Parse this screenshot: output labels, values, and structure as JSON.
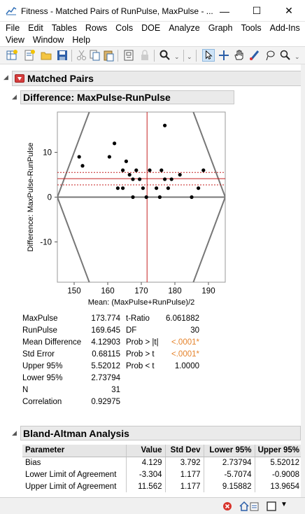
{
  "window": {
    "title": "Fitness - Matched Pairs of RunPulse, MaxPulse - ...",
    "minimize_glyph": "—",
    "maximize_glyph": "☐",
    "close_glyph": "✕"
  },
  "menu": {
    "row1": [
      "File",
      "Edit",
      "Tables",
      "Rows",
      "Cols",
      "DOE",
      "Analyze",
      "Graph",
      "Tools",
      "Add-Ins"
    ],
    "row2": [
      "View",
      "Window",
      "Help"
    ]
  },
  "toolbar": {
    "icons": [
      "new-data-table-icon",
      "new-script-icon",
      "open-icon",
      "save-icon",
      "cut-icon",
      "copy-icon",
      "paste-icon",
      "journal-icon",
      "lock-icon",
      "search-icon",
      "arrow-tool-icon",
      "crosshair-tool-icon",
      "grabber-hand-icon",
      "brush-icon",
      "lasso-icon",
      "magnifier-icon"
    ]
  },
  "report": {
    "matched_pairs_title": "Matched Pairs",
    "difference_title": "Difference: MaxPulse-RunPulse",
    "bland_altman_title": "Bland-Altman Analysis"
  },
  "chart_data": {
    "type": "scatter",
    "title": "",
    "xlabel": "Mean: (MaxPulse+RunPulse)/2",
    "ylabel": "Difference: MaxPulse-RunPulse",
    "xlim": [
      145,
      195
    ],
    "ylim": [
      -19,
      19
    ],
    "xticks": [
      150,
      160,
      170,
      180,
      190
    ],
    "yticks": [
      -10,
      0,
      10
    ],
    "mean_difference": 4.12903,
    "upper_95": 5.52012,
    "lower_95": 2.73794,
    "mean_x_line": 171.71,
    "points": [
      {
        "x": 151.5,
        "y": 9
      },
      {
        "x": 152.5,
        "y": 7
      },
      {
        "x": 160.5,
        "y": 9
      },
      {
        "x": 162,
        "y": 12
      },
      {
        "x": 163,
        "y": 2
      },
      {
        "x": 164.5,
        "y": 2
      },
      {
        "x": 164.5,
        "y": 6
      },
      {
        "x": 165.5,
        "y": 8
      },
      {
        "x": 166.5,
        "y": 5
      },
      {
        "x": 167.5,
        "y": 0
      },
      {
        "x": 167.5,
        "y": 4
      },
      {
        "x": 168.5,
        "y": 6
      },
      {
        "x": 169.5,
        "y": 4
      },
      {
        "x": 170.5,
        "y": 2
      },
      {
        "x": 171.5,
        "y": 0
      },
      {
        "x": 172.5,
        "y": 6
      },
      {
        "x": 174.5,
        "y": 2
      },
      {
        "x": 175.5,
        "y": 0
      },
      {
        "x": 176,
        "y": 6
      },
      {
        "x": 177,
        "y": 16
      },
      {
        "x": 177,
        "y": 4
      },
      {
        "x": 178,
        "y": 2
      },
      {
        "x": 179,
        "y": 4
      },
      {
        "x": 181.5,
        "y": 5
      },
      {
        "x": 185,
        "y": 0
      },
      {
        "x": 187,
        "y": 2
      },
      {
        "x": 188.5,
        "y": 6
      }
    ]
  },
  "stats_left": [
    {
      "label": "MaxPulse",
      "value": "173.774"
    },
    {
      "label": "RunPulse",
      "value": "169.645"
    },
    {
      "label": "Mean Difference",
      "value": "4.12903"
    },
    {
      "label": "Std Error",
      "value": "0.68115"
    },
    {
      "label": "Upper 95%",
      "value": "5.52012"
    },
    {
      "label": "Lower 95%",
      "value": "2.73794"
    },
    {
      "label": "N",
      "value": "31"
    },
    {
      "label": "Correlation",
      "value": "0.92975"
    }
  ],
  "stats_right": [
    {
      "label": "t-Ratio",
      "value": "6.061882",
      "highlight": false
    },
    {
      "label": "DF",
      "value": "30",
      "highlight": false
    },
    {
      "label": "Prob > |t|",
      "value": "<.0001*",
      "highlight": true
    },
    {
      "label": "Prob > t",
      "value": "<.0001*",
      "highlight": true
    },
    {
      "label": "Prob < t",
      "value": "1.0000",
      "highlight": false
    }
  ],
  "bland_altman": {
    "headers": [
      "Parameter",
      "Value",
      "Std Dev",
      "Lower 95%",
      "Upper 95%"
    ],
    "rows": [
      [
        "Bias",
        "4.129",
        "3.792",
        "2.73794",
        "5.52012"
      ],
      [
        "Lower Limit of Agreement",
        "-3.304",
        "1.177",
        "-5.7074",
        "-0.9008"
      ],
      [
        "Upper Limit of Agreement",
        "11.562",
        "1.177",
        "9.15882",
        "13.9654"
      ]
    ]
  },
  "colors": {
    "accent_red": "#c42020",
    "prob_orange": "#e5832b"
  }
}
